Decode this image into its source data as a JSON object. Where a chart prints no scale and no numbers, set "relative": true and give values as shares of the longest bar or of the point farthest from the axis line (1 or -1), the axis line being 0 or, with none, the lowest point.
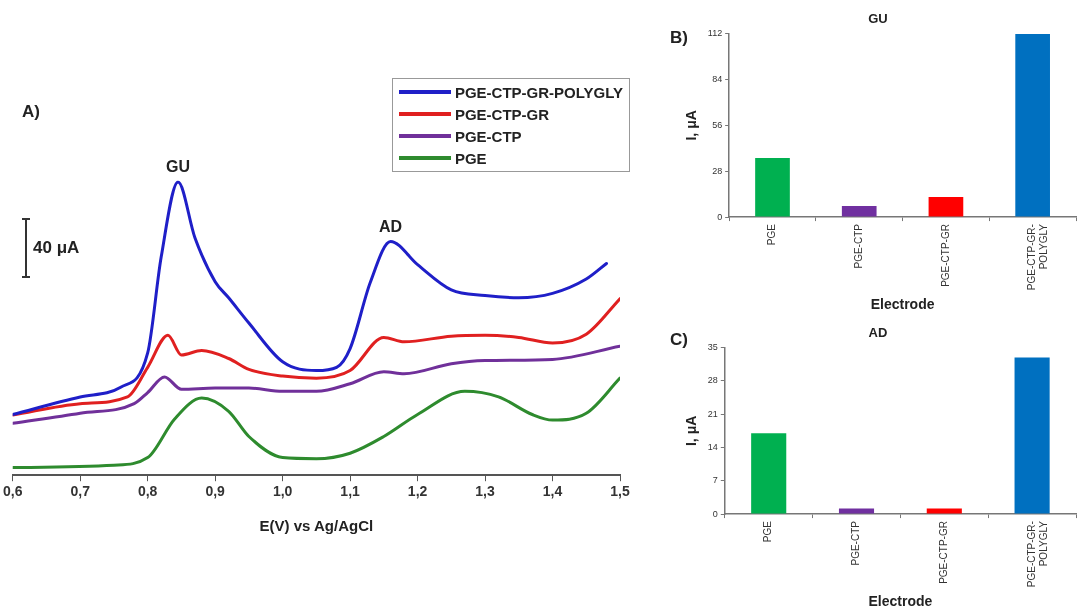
{
  "chart_data": [
    {
      "type": "line",
      "relative": true,
      "xlabel": "E(V) vs Ag/AgCl",
      "xlim": [
        0.6,
        1.5
      ],
      "xticks": [
        {
          "value": 0.6,
          "label": "0,6"
        },
        {
          "value": 0.7,
          "label": "0,7"
        },
        {
          "value": 0.8,
          "label": "0,8"
        },
        {
          "value": 0.9,
          "label": "0,9"
        },
        {
          "value": 1.0,
          "label": "1,0"
        },
        {
          "value": 1.1,
          "label": "1,1"
        },
        {
          "value": 1.2,
          "label": "1,2"
        },
        {
          "value": 1.3,
          "label": "1,3"
        },
        {
          "value": 1.4,
          "label": "1,4"
        },
        {
          "value": 1.5,
          "label": "1,5"
        }
      ],
      "legend": "top right",
      "marker": "none",
      "line_style": "solid",
      "annotations": [
        "A)",
        {
          "text": "GU",
          "x": 0.845,
          "y": 1.0
        },
        {
          "text": "AD",
          "x": 1.16,
          "y": 0.797
        },
        "40 μA"
      ],
      "series": [
        {
          "name": "PGE-CTP-GR-POLYGLY",
          "color": "#1f1fc8",
          "x": [
            0.6,
            0.7,
            0.76,
            0.8,
            0.82,
            0.845,
            0.87,
            0.9,
            0.92,
            0.95,
            1.0,
            1.05,
            1.08,
            1.1,
            1.13,
            1.16,
            1.2,
            1.25,
            1.3,
            1.35,
            1.4,
            1.45,
            1.48
          ],
          "values": [
            0.207,
            0.267,
            0.3,
            0.417,
            0.744,
            1.0,
            0.81,
            0.66,
            0.605,
            0.519,
            0.387,
            0.357,
            0.368,
            0.432,
            0.658,
            0.797,
            0.718,
            0.632,
            0.613,
            0.605,
            0.62,
            0.669,
            0.722
          ]
        },
        {
          "name": "PGE-CTP-GR",
          "color": "#e02020",
          "x": [
            0.6,
            0.7,
            0.77,
            0.8,
            0.83,
            0.85,
            0.88,
            0.92,
            0.95,
            1.0,
            1.05,
            1.1,
            1.15,
            1.18,
            1.25,
            1.3,
            1.35,
            1.4,
            1.45,
            1.5
          ],
          "values": [
            0.205,
            0.244,
            0.267,
            0.368,
            0.477,
            0.41,
            0.425,
            0.398,
            0.361,
            0.338,
            0.331,
            0.357,
            0.47,
            0.455,
            0.474,
            0.477,
            0.47,
            0.451,
            0.481,
            0.602
          ]
        },
        {
          "name": "PGE-CTP",
          "color": "#70309a",
          "x": [
            0.6,
            0.7,
            0.78,
            0.8,
            0.825,
            0.85,
            0.9,
            0.95,
            1.0,
            1.05,
            1.1,
            1.15,
            1.18,
            1.25,
            1.3,
            1.4,
            1.5
          ],
          "values": [
            0.177,
            0.211,
            0.244,
            0.282,
            0.335,
            0.293,
            0.297,
            0.297,
            0.286,
            0.286,
            0.312,
            0.353,
            0.346,
            0.38,
            0.391,
            0.395,
            0.44
          ]
        },
        {
          "name": "PGE",
          "color": "#2e8b2e",
          "x": [
            0.6,
            0.75,
            0.8,
            0.84,
            0.88,
            0.92,
            0.95,
            1.0,
            1.05,
            1.1,
            1.15,
            1.2,
            1.27,
            1.32,
            1.37,
            1.4,
            1.45,
            1.5
          ],
          "values": [
            0.026,
            0.034,
            0.06,
            0.192,
            0.263,
            0.218,
            0.132,
            0.06,
            0.056,
            0.075,
            0.132,
            0.207,
            0.286,
            0.267,
            0.207,
            0.188,
            0.211,
            0.331
          ]
        }
      ]
    },
    {
      "type": "bar",
      "title": "GU",
      "xlabel": "Electrode",
      "ylabel": "I, μA",
      "annotations": [
        "B)"
      ],
      "categories": [
        "PGE",
        "PGE-CTP",
        "PGE-CTP-GR",
        "PGE-CTP-GR-POLYGLY"
      ],
      "values": [
        36.1,
        6.7,
        12.2,
        111.8
      ],
      "colors": [
        "#00b050",
        "#7030a0",
        "#ff0000",
        "#0070c0"
      ],
      "ylim": [
        0,
        112
      ],
      "yticks": [
        0,
        28,
        56,
        84,
        112
      ]
    },
    {
      "type": "bar",
      "title": "AD",
      "xlabel": "Electrode",
      "ylabel": "I, μA",
      "annotations": [
        "C)"
      ],
      "categories": [
        "PGE",
        "PGE-CTP",
        "PGE-CTP-GR",
        "PGE-CTP-GR-POLYGLY"
      ],
      "values": [
        17.0,
        1.2,
        1.2,
        32.9
      ],
      "colors": [
        "#00b050",
        "#7030a0",
        "#ff0000",
        "#0070c0"
      ],
      "ylim": [
        0,
        35
      ],
      "yticks": [
        0,
        7,
        14,
        21,
        28,
        35
      ]
    }
  ]
}
